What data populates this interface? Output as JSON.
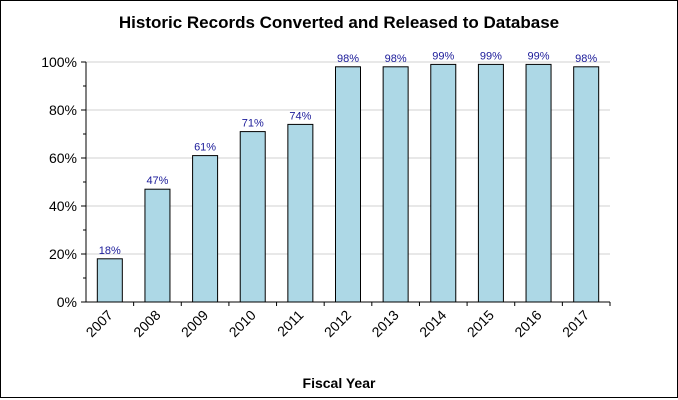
{
  "chart_data": {
    "type": "bar",
    "title": "Historic Records Converted and Released to Database",
    "xlabel": "Fiscal Year",
    "ylabel": "",
    "categories": [
      "2007",
      "2008",
      "2009",
      "2010",
      "2011",
      "2012",
      "2013",
      "2014",
      "2015",
      "2016",
      "2017"
    ],
    "values": [
      18,
      47,
      61,
      71,
      74,
      98,
      98,
      99,
      99,
      99,
      98
    ],
    "data_labels": [
      "18%",
      "47%",
      "61%",
      "71%",
      "74%",
      "98%",
      "98%",
      "99%",
      "99%",
      "99%",
      "98%"
    ],
    "ylim": [
      0,
      100
    ],
    "yticks": [
      0,
      20,
      40,
      60,
      80,
      100
    ],
    "ytick_labels": [
      "0%",
      "20%",
      "40%",
      "60%",
      "80%",
      "100%"
    ],
    "grid": true,
    "legend": "none",
    "colors": {
      "bar_fill": "#add8e6",
      "bar_stroke": "#000000",
      "data_label": "#1a1a99",
      "grid": "#d0d0d0"
    }
  }
}
